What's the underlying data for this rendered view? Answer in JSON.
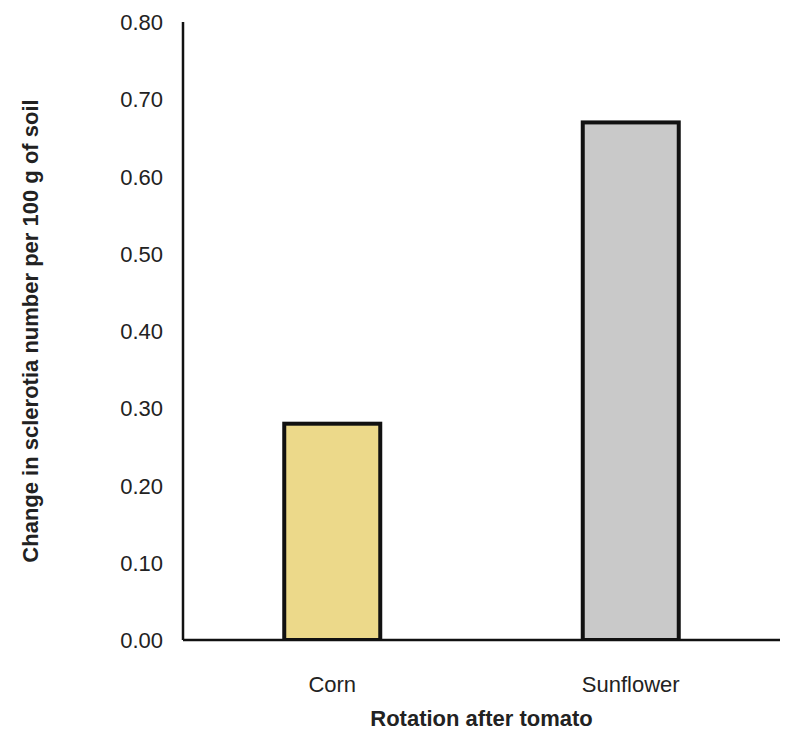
{
  "chart_data": {
    "type": "bar",
    "x_label": "Rotation after tomato",
    "y_label": "Change in sclerotia number per 100 g of soil",
    "categories": [
      "Corn",
      "Sunflower"
    ],
    "values": [
      0.28,
      0.67
    ],
    "colors": [
      "#ecd98a",
      "#c9c9c9"
    ],
    "ylim": [
      0,
      0.8
    ],
    "yticks": [
      {
        "value": 0,
        "label": "0.00"
      },
      {
        "value": 0.1,
        "label": "0.10"
      },
      {
        "value": 0.2,
        "label": "0.20"
      },
      {
        "value": 0.3,
        "label": "0.30"
      },
      {
        "value": 0.4,
        "label": "0.40"
      },
      {
        "value": 0.5,
        "label": "0.50"
      },
      {
        "value": 0.6,
        "label": "0.60"
      },
      {
        "value": 0.7,
        "label": "0.70"
      },
      {
        "value": 0.8,
        "label": "0.80"
      }
    ],
    "grid": false
  }
}
